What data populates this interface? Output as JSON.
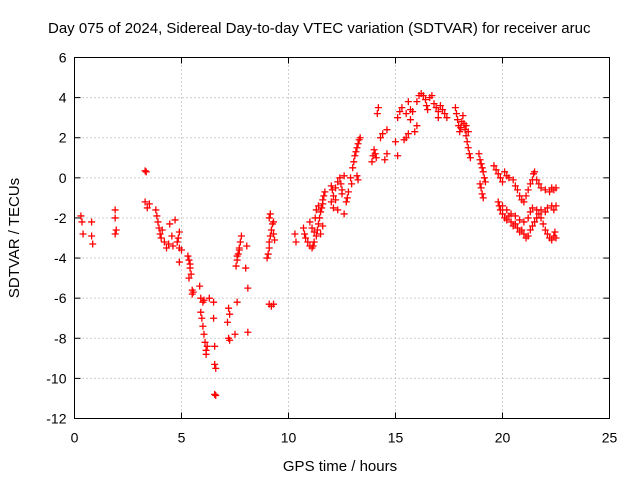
{
  "chart_data": {
    "type": "scatter",
    "title": "Day 075 of 2024, Sidereal Day-to-day VTEC variation (SDTVAR) for receiver aruc",
    "xlabel": "GPS time / hours",
    "ylabel": "SDTVAR / TECUs",
    "xlim": [
      0,
      25
    ],
    "ylim": [
      -12,
      6
    ],
    "x_ticks": [
      0,
      5,
      10,
      15,
      20,
      25
    ],
    "x_tick_labels": [
      "0",
      "5",
      "10",
      "15",
      "20",
      "25"
    ],
    "y_ticks": [
      -12,
      -10,
      -8,
      -6,
      -4,
      -2,
      0,
      2,
      4,
      6
    ],
    "y_tick_labels": [
      "-12",
      "-10",
      "-8",
      "-6",
      "-4",
      "-2",
      "0",
      "2",
      "4",
      "6"
    ],
    "grid": true,
    "marker": "+",
    "color": "#ff0000",
    "series": [
      {
        "name": "SDTVAR",
        "points": [
          [
            0.3,
            -1.9
          ],
          [
            0.35,
            -2.2
          ],
          [
            0.4,
            -2.8
          ],
          [
            0.8,
            -2.2
          ],
          [
            0.8,
            -2.9
          ],
          [
            0.85,
            -3.3
          ],
          [
            1.9,
            -1.6
          ],
          [
            1.9,
            -2.0
          ],
          [
            1.95,
            -2.6
          ],
          [
            1.9,
            -2.8
          ],
          [
            3.3,
            0.35
          ],
          [
            3.35,
            0.3
          ],
          [
            3.3,
            -1.2
          ],
          [
            3.4,
            -1.5
          ],
          [
            3.5,
            -1.3
          ],
          [
            3.8,
            -1.6
          ],
          [
            3.85,
            -1.9
          ],
          [
            3.9,
            -2.2
          ],
          [
            3.95,
            -2.5
          ],
          [
            4.0,
            -2.8
          ],
          [
            4.05,
            -3.0
          ],
          [
            4.1,
            -2.6
          ],
          [
            4.2,
            -3.2
          ],
          [
            4.3,
            -3.5
          ],
          [
            4.4,
            -3.3
          ],
          [
            4.45,
            -2.3
          ],
          [
            4.55,
            -2.9
          ],
          [
            4.6,
            -3.4
          ],
          [
            4.7,
            -2.1
          ],
          [
            4.8,
            -3.2
          ],
          [
            4.85,
            -3.0
          ],
          [
            4.9,
            -2.7
          ],
          [
            4.9,
            -3.5
          ],
          [
            4.9,
            -4.2
          ],
          [
            5.0,
            -3.6
          ],
          [
            5.3,
            -3.9
          ],
          [
            5.35,
            -4.1
          ],
          [
            5.4,
            -4.3
          ],
          [
            5.4,
            -4.5
          ],
          [
            5.45,
            -4.8
          ],
          [
            5.35,
            -5.0
          ],
          [
            5.5,
            -5.6
          ],
          [
            5.5,
            -5.8
          ],
          [
            5.55,
            -5.7
          ],
          [
            5.85,
            -5.4
          ],
          [
            5.9,
            -6.0
          ],
          [
            6.0,
            -6.2
          ],
          [
            6.05,
            -6.1
          ],
          [
            5.9,
            -6.7
          ],
          [
            5.95,
            -7.0
          ],
          [
            6.0,
            -7.4
          ],
          [
            6.05,
            -7.8
          ],
          [
            6.1,
            -8.2
          ],
          [
            6.15,
            -8.6
          ],
          [
            6.15,
            -8.8
          ],
          [
            6.2,
            -8.4
          ],
          [
            6.3,
            -6.0
          ],
          [
            6.5,
            -6.2
          ],
          [
            6.5,
            -7.0
          ],
          [
            6.55,
            -8.4
          ],
          [
            6.55,
            -9.3
          ],
          [
            6.6,
            -9.5
          ],
          [
            6.55,
            -10.8
          ],
          [
            6.6,
            -10.85
          ],
          [
            7.2,
            -6.5
          ],
          [
            7.25,
            -6.8
          ],
          [
            7.15,
            -7.2
          ],
          [
            7.2,
            -8.0
          ],
          [
            7.25,
            -8.1
          ],
          [
            7.5,
            -7.8
          ],
          [
            7.6,
            -6.2
          ],
          [
            7.55,
            -4.4
          ],
          [
            7.6,
            -4.1
          ],
          [
            7.65,
            -3.8
          ],
          [
            7.7,
            -3.5
          ],
          [
            7.75,
            -3.2
          ],
          [
            7.8,
            -2.9
          ],
          [
            7.6,
            -3.9
          ],
          [
            7.7,
            -3.6
          ],
          [
            8.0,
            -4.5
          ],
          [
            8.1,
            -5.5
          ],
          [
            8.1,
            -7.7
          ],
          [
            8.05,
            -3.4
          ],
          [
            9.0,
            -4.0
          ],
          [
            9.05,
            -3.8
          ],
          [
            9.1,
            -3.5
          ],
          [
            9.1,
            -3.2
          ],
          [
            9.15,
            -2.9
          ],
          [
            9.2,
            -2.6
          ],
          [
            9.25,
            -2.3
          ],
          [
            9.1,
            -2.0
          ],
          [
            9.15,
            -1.8
          ],
          [
            9.3,
            -2.2
          ],
          [
            9.3,
            -2.8
          ],
          [
            9.35,
            -3.1
          ],
          [
            9.1,
            -6.3
          ],
          [
            9.2,
            -6.4
          ],
          [
            9.3,
            -6.3
          ],
          [
            10.3,
            -2.8
          ],
          [
            10.35,
            -3.2
          ],
          [
            10.7,
            -2.5
          ],
          [
            10.75,
            -2.8
          ],
          [
            10.8,
            -3.0
          ],
          [
            10.9,
            -3.2
          ],
          [
            11.0,
            -3.4
          ],
          [
            11.1,
            -3.5
          ],
          [
            11.15,
            -3.4
          ],
          [
            11.2,
            -3.2
          ],
          [
            11.3,
            -2.9
          ],
          [
            11.35,
            -2.6
          ],
          [
            11.4,
            -2.3
          ],
          [
            11.45,
            -2.0
          ],
          [
            11.5,
            -1.7
          ],
          [
            11.55,
            -1.5
          ],
          [
            11.6,
            -1.3
          ],
          [
            11.6,
            -1.1
          ],
          [
            11.65,
            -0.9
          ],
          [
            11.7,
            -0.7
          ],
          [
            11.0,
            -2.2
          ],
          [
            11.1,
            -2.5
          ],
          [
            11.2,
            -2.7
          ],
          [
            11.25,
            -2.0
          ],
          [
            11.3,
            -1.6
          ],
          [
            11.4,
            -1.4
          ],
          [
            11.5,
            -2.8
          ],
          [
            11.6,
            -2.4
          ],
          [
            12.0,
            -0.4
          ],
          [
            12.05,
            -0.6
          ],
          [
            12.1,
            -0.9
          ],
          [
            12.0,
            -1.2
          ],
          [
            12.1,
            -1.5
          ],
          [
            12.2,
            -1.1
          ],
          [
            12.2,
            -0.5
          ],
          [
            12.3,
            -0.2
          ],
          [
            12.4,
            0.0
          ],
          [
            12.45,
            -0.3
          ],
          [
            12.5,
            -0.6
          ],
          [
            12.5,
            -0.8
          ],
          [
            12.3,
            -1.6
          ],
          [
            12.6,
            0.1
          ],
          [
            12.6,
            -1.8
          ],
          [
            12.7,
            -1.2
          ],
          [
            12.75,
            -1.0
          ],
          [
            12.8,
            -0.7
          ],
          [
            12.9,
            0.0
          ],
          [
            12.95,
            -0.3
          ],
          [
            13.0,
            0.5
          ],
          [
            13.05,
            0.8
          ],
          [
            13.1,
            1.1
          ],
          [
            13.15,
            1.3
          ],
          [
            13.2,
            1.5
          ],
          [
            13.25,
            1.7
          ],
          [
            13.3,
            1.9
          ],
          [
            13.35,
            2.0
          ],
          [
            13.2,
            0.1
          ],
          [
            13.25,
            -0.1
          ],
          [
            13.9,
            0.8
          ],
          [
            13.95,
            1.1
          ],
          [
            14.0,
            1.4
          ],
          [
            14.05,
            1.2
          ],
          [
            14.1,
            1.0
          ],
          [
            14.15,
            3.2
          ],
          [
            14.2,
            3.5
          ],
          [
            14.3,
            2.0
          ],
          [
            14.4,
            2.2
          ],
          [
            14.6,
            2.4
          ],
          [
            14.6,
            1.2
          ],
          [
            14.5,
            0.9
          ],
          [
            15.1,
            1.1
          ],
          [
            15.0,
            1.8
          ],
          [
            15.1,
            3.0
          ],
          [
            15.2,
            3.3
          ],
          [
            15.3,
            3.5
          ],
          [
            15.4,
            1.9
          ],
          [
            15.5,
            2.0
          ],
          [
            15.5,
            3.2
          ],
          [
            15.6,
            2.2
          ],
          [
            15.6,
            3.8
          ],
          [
            15.7,
            3.4
          ],
          [
            15.7,
            2.9
          ],
          [
            15.8,
            3.3
          ],
          [
            15.9,
            2.3
          ],
          [
            16.0,
            2.6
          ],
          [
            16.0,
            3.8
          ],
          [
            16.1,
            4.1
          ],
          [
            16.2,
            4.2
          ],
          [
            16.3,
            4.1
          ],
          [
            16.4,
            3.9
          ],
          [
            16.45,
            3.6
          ],
          [
            16.5,
            3.4
          ],
          [
            16.6,
            4.0
          ],
          [
            16.7,
            4.1
          ],
          [
            16.8,
            3.7
          ],
          [
            16.9,
            3.5
          ],
          [
            17.0,
            3.3
          ],
          [
            17.0,
            3.0
          ],
          [
            17.1,
            3.6
          ],
          [
            17.2,
            3.4
          ],
          [
            17.3,
            3.2
          ],
          [
            17.4,
            3.0
          ],
          [
            17.8,
            3.5
          ],
          [
            17.85,
            3.2
          ],
          [
            17.9,
            2.9
          ],
          [
            17.95,
            2.6
          ],
          [
            18.0,
            2.3
          ],
          [
            18.05,
            2.5
          ],
          [
            18.1,
            2.8
          ],
          [
            18.15,
            3.1
          ],
          [
            18.2,
            2.7
          ],
          [
            18.25,
            2.4
          ],
          [
            18.3,
            2.1
          ],
          [
            18.35,
            1.8
          ],
          [
            18.4,
            1.5
          ],
          [
            18.45,
            1.2
          ],
          [
            18.5,
            1.0
          ],
          [
            18.3,
            2.6
          ],
          [
            18.4,
            2.3
          ],
          [
            18.9,
            1.2
          ],
          [
            18.95,
            0.9
          ],
          [
            19.0,
            0.7
          ],
          [
            19.05,
            0.5
          ],
          [
            19.1,
            0.3
          ],
          [
            19.15,
            0.0
          ],
          [
            19.2,
            -0.2
          ],
          [
            19.0,
            -0.5
          ],
          [
            19.05,
            -0.8
          ],
          [
            19.1,
            -1.0
          ],
          [
            18.95,
            -0.3
          ],
          [
            19.6,
            0.6
          ],
          [
            19.7,
            0.4
          ],
          [
            19.8,
            0.2
          ],
          [
            19.9,
            0.0
          ],
          [
            20.0,
            -0.2
          ],
          [
            20.1,
            0.3
          ],
          [
            20.2,
            0.1
          ],
          [
            20.3,
            0.0
          ],
          [
            20.5,
            -0.1
          ],
          [
            20.6,
            -0.4
          ],
          [
            20.7,
            -0.6
          ],
          [
            20.8,
            -0.9
          ],
          [
            20.9,
            -1.1
          ],
          [
            21.0,
            -1.2
          ],
          [
            21.1,
            -0.9
          ],
          [
            21.2,
            -0.6
          ],
          [
            21.3,
            -0.3
          ],
          [
            21.4,
            -0.1
          ],
          [
            21.45,
            0.2
          ],
          [
            21.5,
            0.3
          ],
          [
            21.6,
            -0.1
          ],
          [
            21.7,
            -0.3
          ],
          [
            21.8,
            -0.5
          ],
          [
            22.0,
            -0.6
          ],
          [
            22.2,
            -0.7
          ],
          [
            22.3,
            -0.5
          ],
          [
            22.4,
            -0.6
          ],
          [
            19.8,
            -1.2
          ],
          [
            19.85,
            -1.4
          ],
          [
            19.9,
            -1.6
          ],
          [
            20.0,
            -1.8
          ],
          [
            20.1,
            -2.0
          ],
          [
            20.2,
            -2.1
          ],
          [
            20.3,
            -1.9
          ],
          [
            20.4,
            -2.2
          ],
          [
            20.5,
            -2.4
          ],
          [
            20.6,
            -2.3
          ],
          [
            20.7,
            -2.5
          ],
          [
            20.8,
            -2.7
          ],
          [
            20.9,
            -2.6
          ],
          [
            21.0,
            -2.8
          ],
          [
            21.1,
            -3.0
          ],
          [
            21.2,
            -2.9
          ],
          [
            21.3,
            -2.6
          ],
          [
            21.4,
            -2.4
          ],
          [
            21.5,
            -2.2
          ],
          [
            21.6,
            -2.0
          ],
          [
            21.7,
            -1.8
          ],
          [
            21.8,
            -2.0
          ],
          [
            21.9,
            -2.3
          ],
          [
            22.0,
            -2.6
          ],
          [
            22.1,
            -2.8
          ],
          [
            22.2,
            -3.0
          ],
          [
            22.3,
            -3.1
          ],
          [
            22.4,
            -2.9
          ],
          [
            22.45,
            -2.7
          ],
          [
            22.5,
            -3.0
          ],
          [
            20.0,
            -1.4
          ],
          [
            20.2,
            -1.6
          ],
          [
            20.4,
            -1.8
          ],
          [
            20.6,
            -1.9
          ],
          [
            20.8,
            -2.1
          ],
          [
            21.0,
            -2.2
          ],
          [
            21.2,
            -2.0
          ],
          [
            21.3,
            -1.7
          ],
          [
            21.4,
            -1.5
          ],
          [
            21.6,
            -1.6
          ],
          [
            21.8,
            -1.6
          ],
          [
            22.0,
            -1.7
          ],
          [
            22.1,
            -1.5
          ],
          [
            22.3,
            -1.4
          ],
          [
            22.4,
            -1.6
          ],
          [
            22.5,
            -1.4
          ],
          [
            22.5,
            -0.5
          ]
        ]
      }
    ]
  }
}
